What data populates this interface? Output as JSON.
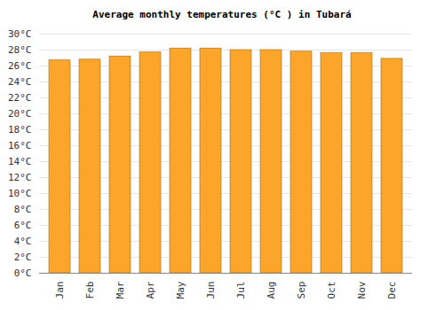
{
  "chart_data": {
    "type": "bar",
    "title": "Average monthly temperatures (°C ) in Tubará",
    "categories": [
      "Jan",
      "Feb",
      "Mar",
      "Apr",
      "May",
      "Jun",
      "Jul",
      "Aug",
      "Sep",
      "Oct",
      "Nov",
      "Dec"
    ],
    "values": [
      26.7,
      26.8,
      27.2,
      27.7,
      28.2,
      28.2,
      28.0,
      28.0,
      27.8,
      27.6,
      27.6,
      26.9
    ],
    "color": "#fba52a",
    "ylim": [
      0,
      30
    ],
    "yticks": [
      {
        "value": 0,
        "label": "0°C"
      },
      {
        "value": 2,
        "label": "2°C"
      },
      {
        "value": 4,
        "label": "4°C"
      },
      {
        "value": 6,
        "label": "6°C"
      },
      {
        "value": 8,
        "label": "8°C"
      },
      {
        "value": 10,
        "label": "10°C"
      },
      {
        "value": 12,
        "label": "12°C"
      },
      {
        "value": 14,
        "label": "14°C"
      },
      {
        "value": 16,
        "label": "16°C"
      },
      {
        "value": 18,
        "label": "18°C"
      },
      {
        "value": 20,
        "label": "20°C"
      },
      {
        "value": 22,
        "label": "22°C"
      },
      {
        "value": 24,
        "label": "24°C"
      },
      {
        "value": 26,
        "label": "26°C"
      },
      {
        "value": 28,
        "label": "28°C"
      },
      {
        "value": 30,
        "label": "30°C"
      }
    ],
    "grid": true
  }
}
